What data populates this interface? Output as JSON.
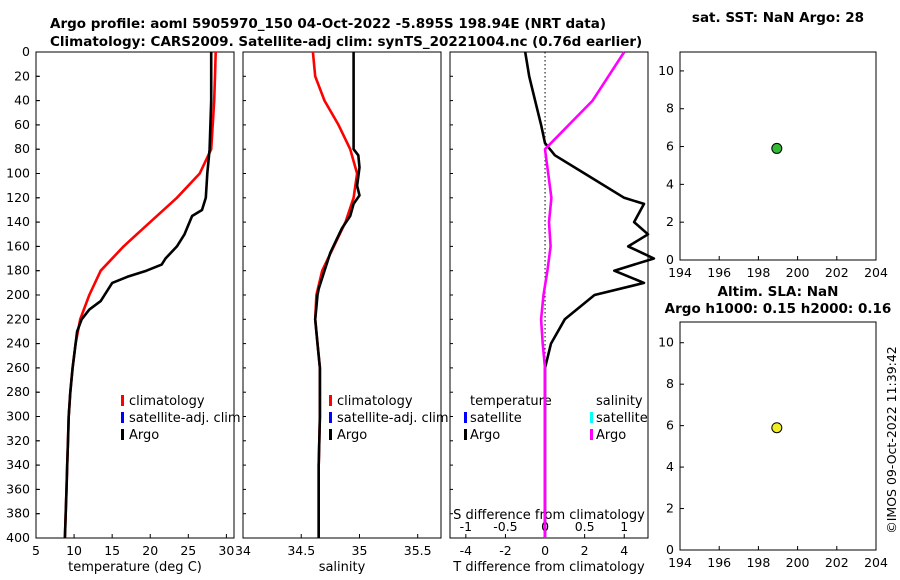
{
  "title_lines": [
    "Argo profile: aoml 5905970_150 04-Oct-2022 -5.895S 198.94E (NRT data)",
    "Climatology: CARS2009. Satellite-adj clim: synTS_20221004.nc (0.76d earlier)"
  ],
  "watermark": "©IMOS 09-Oct-2022 11:39:42",
  "colors": {
    "climatology": "#ff0000",
    "satellite": "#0000ff",
    "argo": "#000000",
    "salinity_diff": "#ff00ff",
    "sat_salinity": "#00ffff",
    "sst_marker": "#33bb33",
    "sla_marker": "#eeee22"
  },
  "depth_ticks": [
    "0",
    "20",
    "40",
    "60",
    "80",
    "100",
    "120",
    "140",
    "160",
    "180",
    "200",
    "220",
    "240",
    "260",
    "280",
    "300",
    "320",
    "340",
    "360",
    "380",
    "400"
  ],
  "chart_data": [
    {
      "type": "line",
      "id": "temperature",
      "xlabel": "temperature (deg C)",
      "xticks": [
        "5",
        "10",
        "15",
        "20",
        "25",
        "30"
      ],
      "xlim": [
        5,
        31
      ],
      "ylim": [
        0,
        400
      ],
      "legend": [
        "climatology",
        "satellite-adj. clim",
        "Argo"
      ],
      "series": [
        {
          "name": "climatology",
          "color": "#ff0000",
          "points": [
            [
              28.6,
              0
            ],
            [
              28.5,
              20
            ],
            [
              28.4,
              40
            ],
            [
              28.2,
              60
            ],
            [
              28.0,
              80
            ],
            [
              26.5,
              100
            ],
            [
              23.5,
              120
            ],
            [
              20.0,
              140
            ],
            [
              16.5,
              160
            ],
            [
              13.5,
              180
            ],
            [
              12.0,
              200
            ],
            [
              10.8,
              220
            ],
            [
              10.2,
              240
            ],
            [
              9.8,
              260
            ],
            [
              9.5,
              280
            ],
            [
              9.3,
              300
            ],
            [
              9.2,
              320
            ],
            [
              9.1,
              340
            ],
            [
              9.0,
              360
            ],
            [
              8.9,
              380
            ],
            [
              8.8,
              400
            ]
          ]
        },
        {
          "name": "Argo",
          "color": "#000000",
          "points": [
            [
              28.0,
              0
            ],
            [
              28.0,
              40
            ],
            [
              27.8,
              80
            ],
            [
              27.5,
              100
            ],
            [
              27.3,
              120
            ],
            [
              26.8,
              130
            ],
            [
              25.5,
              135
            ],
            [
              24.5,
              150
            ],
            [
              23.5,
              160
            ],
            [
              22.0,
              170
            ],
            [
              21.5,
              175
            ],
            [
              19.5,
              180
            ],
            [
              17.0,
              185
            ],
            [
              15.0,
              190
            ],
            [
              13.5,
              205
            ],
            [
              12.0,
              212
            ],
            [
              11.0,
              220
            ],
            [
              10.4,
              230
            ],
            [
              10.0,
              250
            ],
            [
              9.8,
              260
            ],
            [
              9.5,
              280
            ],
            [
              9.3,
              300
            ],
            [
              9.2,
              320
            ],
            [
              9.1,
              340
            ],
            [
              9.0,
              360
            ],
            [
              8.9,
              380
            ],
            [
              8.8,
              400
            ]
          ]
        }
      ]
    },
    {
      "type": "line",
      "id": "salinity",
      "xlabel": "salinity",
      "xticks": [
        "34",
        "34.5",
        "35",
        "35.5"
      ],
      "xlim": [
        34.0,
        35.7
      ],
      "ylim": [
        0,
        400
      ],
      "legend": [
        "climatology",
        "satellite-adj. clim",
        "Argo"
      ],
      "series": [
        {
          "name": "climatology",
          "color": "#ff0000",
          "points": [
            [
              34.6,
              0
            ],
            [
              34.62,
              20
            ],
            [
              34.7,
              40
            ],
            [
              34.82,
              60
            ],
            [
              34.92,
              80
            ],
            [
              34.98,
              100
            ],
            [
              34.95,
              120
            ],
            [
              34.88,
              140
            ],
            [
              34.78,
              160
            ],
            [
              34.68,
              180
            ],
            [
              34.63,
              200
            ],
            [
              34.62,
              220
            ],
            [
              34.64,
              240
            ],
            [
              34.66,
              260
            ],
            [
              34.66,
              300
            ],
            [
              34.65,
              340
            ],
            [
              34.65,
              400
            ]
          ]
        },
        {
          "name": "Argo",
          "color": "#000000",
          "points": [
            [
              34.95,
              0
            ],
            [
              34.95,
              80
            ],
            [
              34.99,
              85
            ],
            [
              35.0,
              95
            ],
            [
              34.98,
              110
            ],
            [
              35.0,
              118
            ],
            [
              34.95,
              125
            ],
            [
              34.92,
              135
            ],
            [
              34.85,
              145
            ],
            [
              34.8,
              155
            ],
            [
              34.75,
              165
            ],
            [
              34.7,
              180
            ],
            [
              34.65,
              195
            ],
            [
              34.64,
              200
            ],
            [
              34.63,
              210
            ],
            [
              34.62,
              220
            ],
            [
              34.64,
              240
            ],
            [
              34.66,
              260
            ],
            [
              34.66,
              300
            ],
            [
              34.65,
              340
            ],
            [
              34.65,
              400
            ]
          ]
        }
      ]
    },
    {
      "type": "line",
      "id": "difference",
      "xlabel": "T difference from climatology",
      "xlabel_top": "S difference from climatology",
      "xticks": [
        "-4",
        "-2",
        "0",
        "2",
        "4"
      ],
      "xticks_top": [
        "-1",
        "-0.5",
        "0",
        "0.5",
        "1"
      ],
      "xlim": [
        -4.8,
        5.2
      ],
      "ylim": [
        0,
        400
      ],
      "legend_titles": [
        "temperature",
        "salinity"
      ],
      "legend_left": [
        "satellite",
        "Argo"
      ],
      "legend_right": [
        "satellite",
        "Argo"
      ],
      "series": [
        {
          "name": "T Argo - clim",
          "color": "#000000",
          "points": [
            [
              -1.0,
              0
            ],
            [
              -0.8,
              20
            ],
            [
              -0.5,
              40
            ],
            [
              -0.2,
              60
            ],
            [
              0.0,
              75
            ],
            [
              0.5,
              85
            ],
            [
              2.0,
              100
            ],
            [
              4.0,
              120
            ],
            [
              5.0,
              125
            ],
            [
              4.5,
              140
            ],
            [
              5.2,
              150
            ],
            [
              4.2,
              160
            ],
            [
              5.5,
              170
            ],
            [
              3.5,
              180
            ],
            [
              5.0,
              190
            ],
            [
              2.5,
              200
            ],
            [
              1.0,
              220
            ],
            [
              0.3,
              240
            ],
            [
              0.0,
              260
            ],
            [
              0.0,
              300
            ],
            [
              0.0,
              400
            ]
          ]
        },
        {
          "name": "S Argo - clim",
          "color": "#ff00ff",
          "points": [
            [
              1.0,
              0
            ],
            [
              0.8,
              20
            ],
            [
              0.6,
              40
            ],
            [
              0.3,
              60
            ],
            [
              0.0,
              80
            ],
            [
              0.04,
              100
            ],
            [
              0.08,
              120
            ],
            [
              0.05,
              140
            ],
            [
              0.07,
              160
            ],
            [
              0.03,
              180
            ],
            [
              -0.02,
              200
            ],
            [
              -0.05,
              220
            ],
            [
              -0.03,
              240
            ],
            [
              0.0,
              260
            ],
            [
              0.0,
              300
            ],
            [
              0.0,
              400
            ]
          ]
        }
      ]
    },
    {
      "type": "scatter",
      "id": "sst",
      "title": "sat. SST: NaN Argo: 28",
      "xticks": [
        "194",
        "196",
        "198",
        "200",
        "202",
        "204"
      ],
      "yticks": [
        "0",
        "2",
        "4",
        "6",
        "8",
        "10"
      ],
      "xlim": [
        194,
        204
      ],
      "ylim": [
        0,
        11
      ],
      "points": [
        [
          198.94,
          5.9
        ]
      ]
    },
    {
      "type": "scatter",
      "id": "sla",
      "title_lines": [
        "Altim. SLA: NaN",
        "Argo h1000: 0.15 h2000: 0.16"
      ],
      "xticks": [
        "194",
        "196",
        "198",
        "200",
        "202",
        "204"
      ],
      "yticks": [
        "0",
        "2",
        "4",
        "6",
        "8",
        "10"
      ],
      "xlim": [
        194,
        204
      ],
      "ylim": [
        0,
        11
      ],
      "points": [
        [
          198.94,
          5.9
        ]
      ]
    }
  ]
}
